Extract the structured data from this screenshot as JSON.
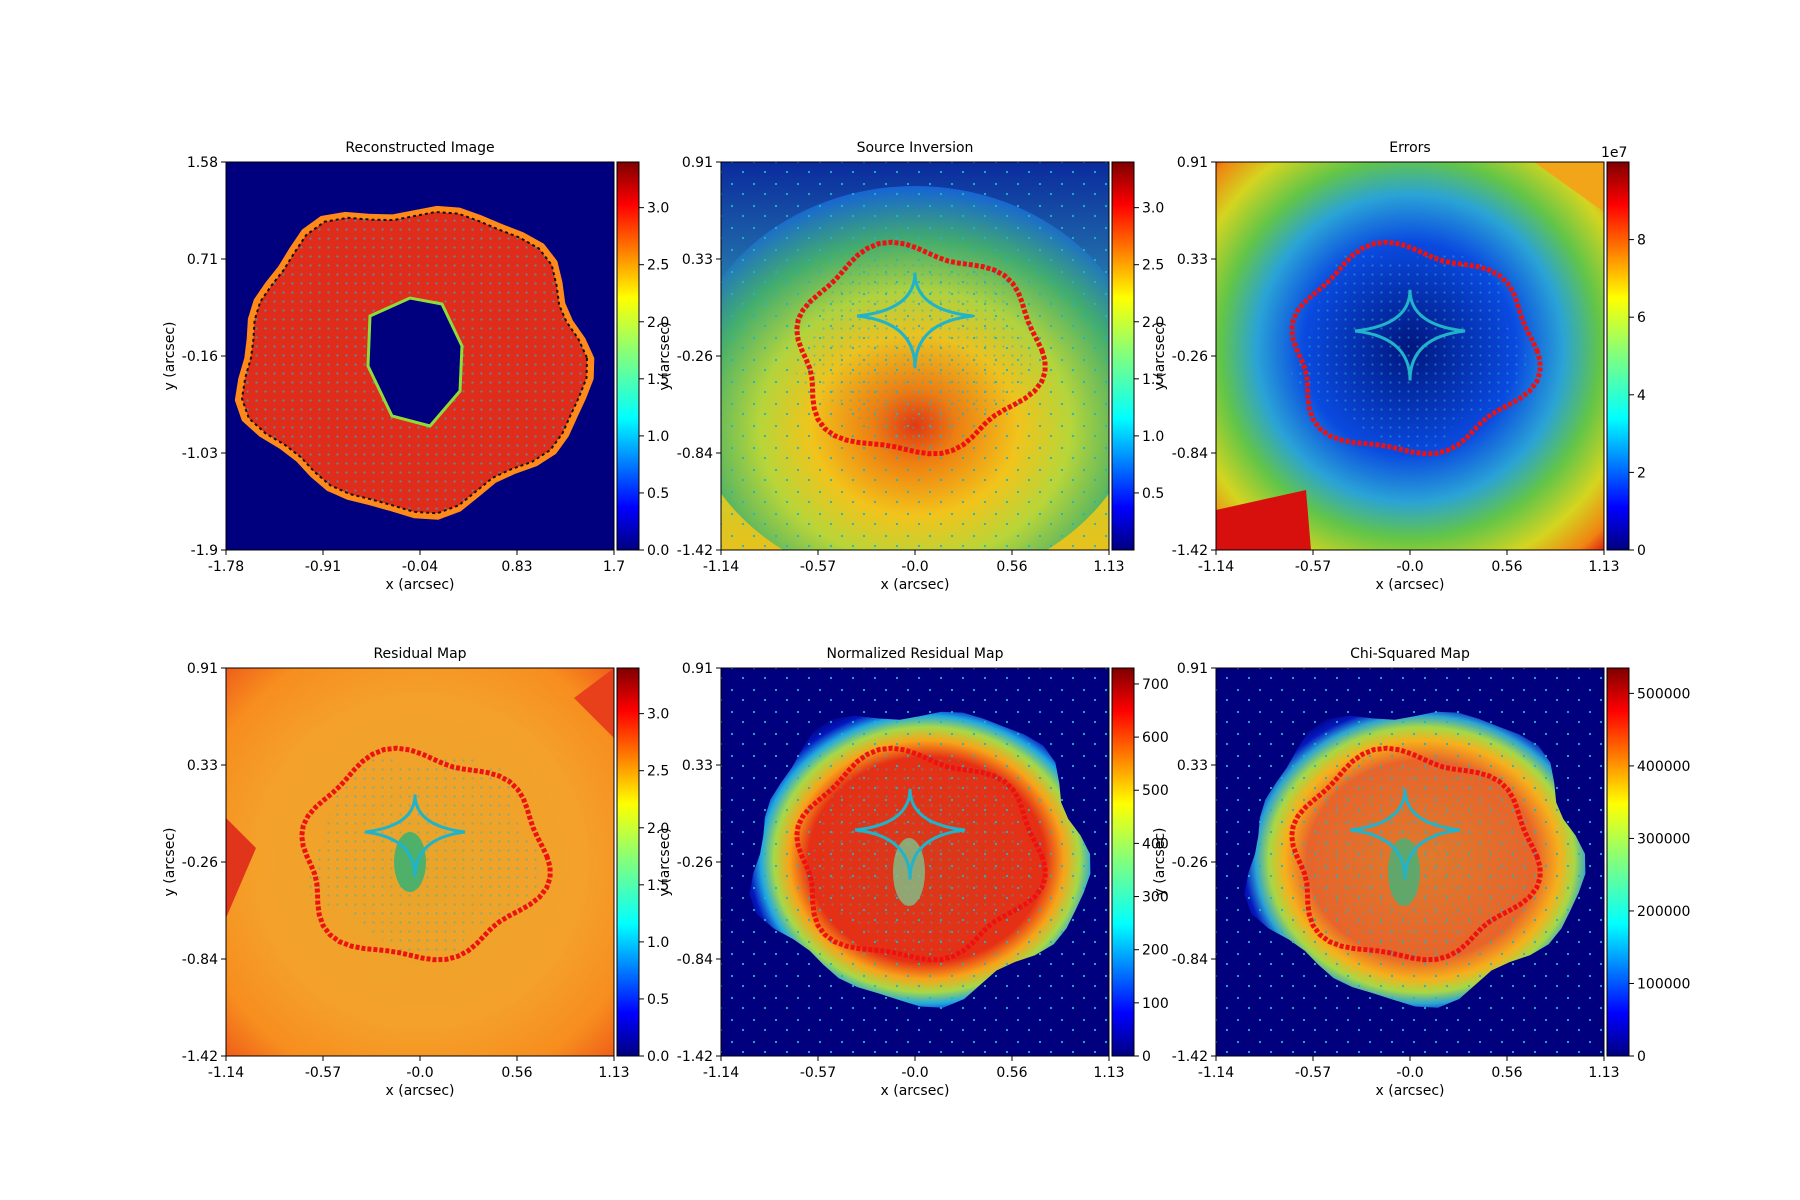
{
  "chart_data": [
    {
      "type": "heatmap",
      "title": "Reconstructed Image",
      "xlabel": "x (arcsec)",
      "ylabel": "y (arcsec)",
      "xticks": [
        "-1.78",
        "-0.91",
        "-0.04",
        "0.83",
        "1.7"
      ],
      "yticks": [
        "1.58",
        "0.71",
        "-0.16",
        "-1.03",
        "-1.9"
      ],
      "xlim": [
        -1.78,
        1.7
      ],
      "ylim": [
        -1.9,
        1.58
      ],
      "colorbar": {
        "ticks": [
          "0.0",
          "0.5",
          "1.0",
          "1.5",
          "2.0",
          "2.5",
          "3.0"
        ],
        "range": [
          0,
          3.4
        ],
        "exponent": ""
      },
      "colormap": "jet",
      "overlays": [
        "cyan grid points",
        "black critical curve"
      ]
    },
    {
      "type": "heatmap",
      "title": "Source Inversion",
      "xlabel": "x (arcsec)",
      "ylabel": "y (arcsec)",
      "xticks": [
        "-1.14",
        "-0.57",
        "-0.0",
        "0.56",
        "1.13"
      ],
      "yticks": [
        "0.91",
        "0.33",
        "-0.26",
        "-0.84",
        "-1.42"
      ],
      "xlim": [
        -1.14,
        1.13
      ],
      "ylim": [
        -1.42,
        0.91
      ],
      "colorbar": {
        "ticks": [
          "0.5",
          "1.0",
          "1.5",
          "2.0",
          "2.5",
          "3.0"
        ],
        "range": [
          0,
          3.4
        ],
        "exponent": ""
      },
      "colormap": "jet",
      "overlays": [
        "cyan source-plane pixel centres",
        "red caustic border"
      ]
    },
    {
      "type": "heatmap",
      "title": "Errors",
      "xlabel": "x (arcsec)",
      "ylabel": "y (arcsec)",
      "xticks": [
        "-1.14",
        "-0.57",
        "-0.0",
        "0.56",
        "1.13"
      ],
      "yticks": [
        "0.91",
        "0.33",
        "-0.26",
        "-0.84",
        "-1.42"
      ],
      "xlim": [
        -1.14,
        1.13
      ],
      "ylim": [
        -1.42,
        0.91
      ],
      "colorbar": {
        "ticks": [
          "0",
          "2",
          "4",
          "6",
          "8"
        ],
        "range": [
          0,
          10
        ],
        "exponent": "1e7"
      },
      "colormap": "jet",
      "overlays": [
        "cyan source-plane pixel centres",
        "red caustic border"
      ]
    },
    {
      "type": "heatmap",
      "title": "Residual Map",
      "xlabel": "x (arcsec)",
      "ylabel": "y (arcsec)",
      "xticks": [
        "-1.14",
        "-0.57",
        "-0.0",
        "0.56",
        "1.13"
      ],
      "yticks": [
        "0.91",
        "0.33",
        "-0.26",
        "-0.84",
        "-1.42"
      ],
      "xlim": [
        -1.14,
        1.13
      ],
      "ylim": [
        -1.42,
        0.91
      ],
      "colorbar": {
        "ticks": [
          "0.0",
          "0.5",
          "1.0",
          "1.5",
          "2.0",
          "2.5",
          "3.0"
        ],
        "range": [
          0,
          3.4
        ],
        "exponent": ""
      },
      "colormap": "jet",
      "overlays": [
        "cyan source-plane pixel centres",
        "red caustic border"
      ]
    },
    {
      "type": "heatmap",
      "title": "Normalized Residual Map",
      "xlabel": "x (arcsec)",
      "ylabel": "y (arcsec)",
      "xticks": [
        "-1.14",
        "-0.57",
        "-0.0",
        "0.56",
        "1.13"
      ],
      "yticks": [
        "0.91",
        "0.33",
        "-0.26",
        "-0.84",
        "-1.42"
      ],
      "xlim": [
        -1.14,
        1.13
      ],
      "ylim": [
        -1.42,
        0.91
      ],
      "colorbar": {
        "ticks": [
          "0",
          "100",
          "200",
          "300",
          "400",
          "500",
          "600",
          "700"
        ],
        "range": [
          0,
          730
        ],
        "exponent": ""
      },
      "colormap": "jet",
      "overlays": [
        "cyan source-plane pixel centres",
        "red caustic border"
      ]
    },
    {
      "type": "heatmap",
      "title": "Chi-Squared Map",
      "xlabel": "x (arcsec)",
      "ylabel": "y (arcsec)",
      "xticks": [
        "-1.14",
        "-0.57",
        "-0.0",
        "0.56",
        "1.13"
      ],
      "yticks": [
        "0.91",
        "0.33",
        "-0.26",
        "-0.84",
        "-1.42"
      ],
      "xlim": [
        -1.14,
        1.13
      ],
      "ylim": [
        -1.42,
        0.91
      ],
      "colorbar": {
        "ticks": [
          "0",
          "100000",
          "200000",
          "300000",
          "400000",
          "500000"
        ],
        "range": [
          0,
          535000
        ],
        "exponent": ""
      },
      "colormap": "jet",
      "overlays": [
        "cyan source-plane pixel centres",
        "red caustic border"
      ]
    }
  ]
}
